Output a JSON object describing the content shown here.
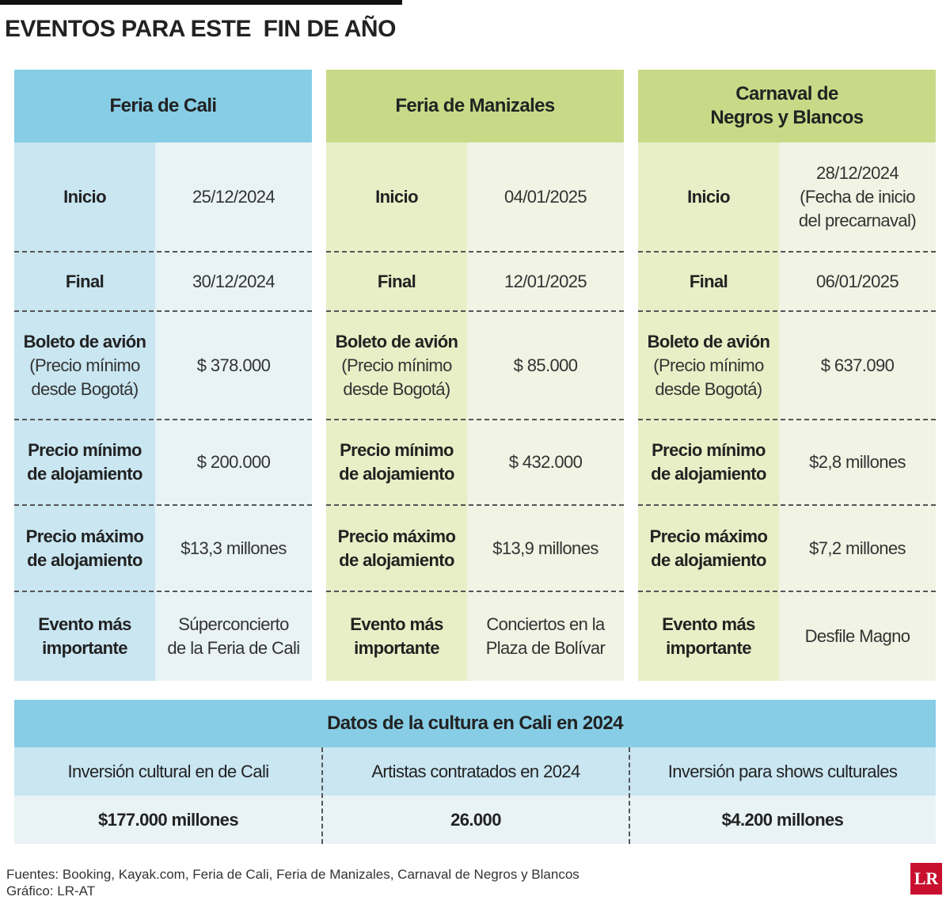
{
  "header": {
    "title": "EVENTOS PARA ESTE  FIN DE AÑO"
  },
  "events": [
    {
      "name": [
        "Feria de Cali"
      ],
      "rows": [
        {
          "label": [
            "Inicio"
          ],
          "value": [
            "25/12/2024"
          ]
        },
        {
          "label": [
            "Final"
          ],
          "value": [
            "30/12/2024"
          ]
        },
        {
          "label": [
            "Boleto de avión"
          ],
          "note": [
            "(Precio mínimo",
            "desde Bogotá)"
          ],
          "value": [
            "$ 378.000"
          ]
        },
        {
          "label": [
            "Precio mínimo",
            "de alojamiento"
          ],
          "value": [
            "$ 200.000"
          ]
        },
        {
          "label": [
            "Precio máximo",
            "de alojamiento"
          ],
          "value": [
            "$13,3 millones"
          ]
        },
        {
          "label": [
            "Evento más",
            "importante"
          ],
          "value": [
            "Súperconcierto",
            "de la Feria de Cali"
          ]
        }
      ]
    },
    {
      "name": [
        "Feria de Manizales"
      ],
      "rows": [
        {
          "label": [
            "Inicio"
          ],
          "value": [
            "04/01/2025"
          ]
        },
        {
          "label": [
            "Final"
          ],
          "value": [
            "12/01/2025"
          ]
        },
        {
          "label": [
            "Boleto de avión"
          ],
          "note": [
            "(Precio mínimo",
            "desde Bogotá)"
          ],
          "value": [
            "$ 85.000"
          ]
        },
        {
          "label": [
            "Precio mínimo",
            "de alojamiento"
          ],
          "value": [
            "$ 432.000"
          ]
        },
        {
          "label": [
            "Precio máximo",
            "de alojamiento"
          ],
          "value": [
            "$13,9 millones"
          ]
        },
        {
          "label": [
            "Evento más",
            "importante"
          ],
          "value": [
            "Conciertos en la",
            "Plaza de Bolívar"
          ]
        }
      ]
    },
    {
      "name": [
        "Carnaval de",
        "Negros y Blancos"
      ],
      "rows": [
        {
          "label": [
            "Inicio"
          ],
          "value": [
            "28/12/2024",
            "(Fecha de inicio",
            "del precarnaval)"
          ]
        },
        {
          "label": [
            "Final"
          ],
          "value": [
            "06/01/2025"
          ]
        },
        {
          "label": [
            "Boleto de avión"
          ],
          "note": [
            "(Precio mínimo",
            "desde Bogotá)"
          ],
          "value": [
            "$ 637.090"
          ]
        },
        {
          "label": [
            "Precio mínimo",
            "de alojamiento"
          ],
          "value": [
            "$2,8 millones"
          ]
        },
        {
          "label": [
            "Precio máximo",
            "de alojamiento"
          ],
          "value": [
            "$7,2 millones"
          ]
        },
        {
          "label": [
            "Evento más",
            "importante"
          ],
          "value": [
            "Desfile Magno"
          ]
        }
      ]
    }
  ],
  "summary": {
    "title": "Datos de la cultura en Cali en 2024",
    "columns": [
      {
        "label": "Inversión cultural en  de Cali",
        "value": "$177.000 millones"
      },
      {
        "label": "Artistas contratados en 2024",
        "value": "26.000"
      },
      {
        "label": "Inversión para shows culturales",
        "value": "$4.200 millones"
      }
    ]
  },
  "footer": {
    "sources": "Fuentes: Booking, Kayak.com, Feria de Cali, Feria de Manizales, Carnaval de Negros y Blancos",
    "credit": "Gráfico: LR-AT",
    "logo": "LR"
  }
}
